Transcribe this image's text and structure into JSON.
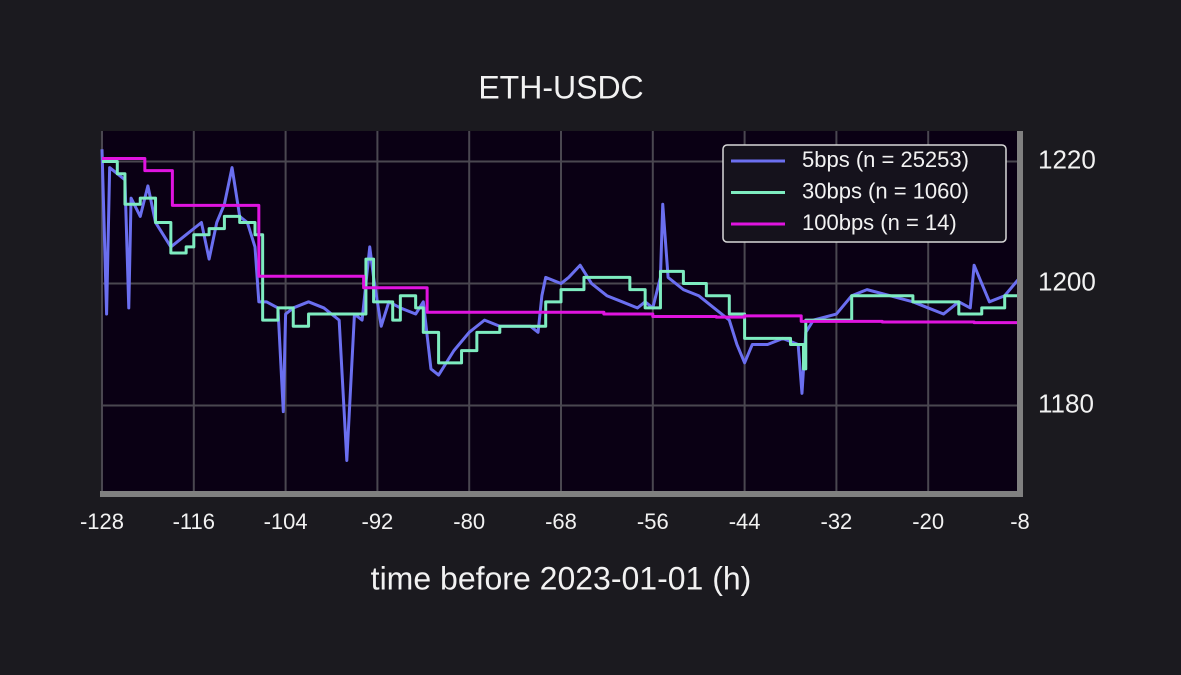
{
  "chart_data": {
    "type": "line",
    "title": "ETH-USDC",
    "xlabel": "time before 2023-01-01 (h)",
    "xlim": [
      -128,
      -8
    ],
    "ylim": [
      1165.5,
      1225
    ],
    "xticks": [
      -128,
      -116,
      -104,
      -92,
      -80,
      -68,
      -56,
      -44,
      -32,
      -20,
      -8
    ],
    "yticks": [
      1180,
      1200,
      1220
    ],
    "yaxis_side": "right",
    "grid": true,
    "legend": "upper right",
    "series": [
      {
        "name": "5bps (n = 25253)",
        "color": "#6b6ff0",
        "drawstyle": "default",
        "x": [
          -128,
          -127.4,
          -127,
          -125,
          -124.5,
          -124.2,
          -123,
          -122,
          -121,
          -120,
          -119,
          -118,
          -117,
          -115,
          -114,
          -113,
          -112,
          -111,
          -110,
          -109,
          -108,
          -107.5,
          -106.5,
          -105,
          -104.3,
          -104,
          -103,
          -101,
          -99,
          -97,
          -96,
          -95,
          -94,
          -93,
          -92.5,
          -91.5,
          -90.5,
          -89,
          -87,
          -86,
          -85,
          -84,
          -82,
          -80,
          -78,
          -76,
          -74,
          -72,
          -71,
          -70.5,
          -70,
          -68,
          -67,
          -65.5,
          -64,
          -62,
          -60,
          -58,
          -57,
          -56,
          -55,
          -54.7,
          -54,
          -52,
          -50,
          -48,
          -46,
          -45,
          -44,
          -43,
          -41,
          -39,
          -37,
          -36.5,
          -36,
          -35,
          -32,
          -30,
          -28,
          -25,
          -22,
          -20,
          -18,
          -16,
          -14.5,
          -14,
          -12,
          -10,
          -8
        ],
        "values": [
          1222,
          1195,
          1219,
          1217,
          1196,
          1214,
          1211,
          1216,
          1210,
          1208,
          1206,
          1207,
          1208,
          1210,
          1204,
          1210,
          1213,
          1219,
          1211,
          1210,
          1206,
          1197,
          1197,
          1196,
          1179,
          1195,
          1196,
          1197,
          1196,
          1194,
          1171,
          1195,
          1194,
          1206,
          1201,
          1193,
          1197,
          1196,
          1195,
          1197,
          1186,
          1185,
          1189,
          1192,
          1194,
          1193,
          1193,
          1193,
          1192,
          1198,
          1201,
          1200,
          1201,
          1203,
          1200,
          1198,
          1197,
          1196,
          1197,
          1196,
          1201,
          1213,
          1201,
          1199,
          1198,
          1196,
          1194,
          1190,
          1187,
          1190,
          1190,
          1191,
          1190,
          1182,
          1192,
          1194,
          1195,
          1198,
          1199,
          1198,
          1197,
          1196,
          1195,
          1197,
          1196,
          1203,
          1197,
          1198,
          1201
        ]
      },
      {
        "name": "30bps (n = 1060)",
        "color": "#7eecc0",
        "drawstyle": "steps-post",
        "x": [
          -128,
          -126,
          -125,
          -123,
          -121,
          -119,
          -117,
          -116,
          -114,
          -112,
          -110,
          -108,
          -107,
          -105,
          -103,
          -101,
          -93.5,
          -92.5,
          -90,
          -89,
          -87,
          -86,
          -84,
          -81,
          -79,
          -76,
          -71,
          -70,
          -68,
          -65,
          -59,
          -57,
          -55,
          -52,
          -49,
          -46,
          -44,
          -42,
          -38,
          -36.3,
          -36,
          -31,
          -30,
          -25,
          -22,
          -16,
          -13,
          -10,
          -8
        ],
        "values": [
          1220,
          1218,
          1213,
          1214,
          1210,
          1205,
          1206,
          1208,
          1209,
          1211,
          1210,
          1208,
          1194,
          1196,
          1193,
          1195,
          1204,
          1197,
          1194,
          1198,
          1196,
          1192,
          1187,
          1189,
          1192,
          1193,
          1193,
          1197,
          1199,
          1201,
          1199,
          1196,
          1202,
          1200,
          1198,
          1195,
          1191,
          1191,
          1190,
          1186,
          1194,
          1194,
          1198,
          1198,
          1197,
          1195,
          1196,
          1198,
          1198
        ]
      },
      {
        "name": "100bps (n = 14)",
        "color": "#e014e0",
        "drawstyle": "steps-post",
        "x": [
          -128,
          -122.4,
          -118.8,
          -107.5,
          -93.8,
          -85.5,
          -62.4,
          -56,
          -47.7,
          -44,
          -36.6,
          -26,
          -14,
          -8
        ],
        "values": [
          1220.5,
          1218.5,
          1212.8,
          1201.2,
          1199.3,
          1195.3,
          1195.0,
          1194.6,
          1194.5,
          1194.7,
          1193.8,
          1193.7,
          1193.6,
          1193.6
        ]
      }
    ]
  }
}
